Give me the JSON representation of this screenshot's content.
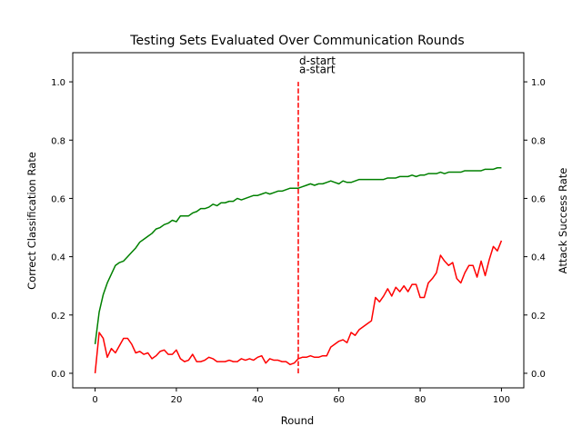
{
  "chart_data": {
    "type": "line",
    "title": "Testing Sets Evaluated Over Communication Rounds",
    "xlabel": "Round",
    "ylabel_left": "Correct Classification Rate",
    "ylabel_right": "Attack Success Rate",
    "xlim": [
      -5.5,
      105.5
    ],
    "ylim_left": [
      -0.05,
      1.1
    ],
    "ylim_right": [
      -0.05,
      1.1
    ],
    "x_ticks": [
      0,
      20,
      40,
      60,
      80,
      100
    ],
    "x_tick_labels": [
      "0",
      "20",
      "40",
      "60",
      "80",
      "100"
    ],
    "y_ticks": [
      0.0,
      0.2,
      0.4,
      0.6,
      0.8,
      1.0
    ],
    "y_tick_labels": [
      "0.0",
      "0.2",
      "0.4",
      "0.6",
      "0.8",
      "1.0"
    ],
    "grid": false,
    "legend": null,
    "colors": {
      "left_label": "#008000",
      "right_label": "#ff0000"
    },
    "series": [
      {
        "axis": "left",
        "color": "#008000",
        "x": [
          0,
          1,
          2,
          3,
          4,
          5,
          6,
          7,
          8,
          9,
          10,
          11,
          12,
          13,
          14,
          15,
          16,
          17,
          18,
          19,
          20,
          21,
          22,
          23,
          24,
          25,
          26,
          27,
          28,
          29,
          30,
          31,
          32,
          33,
          34,
          35,
          36,
          37,
          38,
          39,
          40,
          41,
          42,
          43,
          44,
          45,
          46,
          47,
          48,
          49,
          50,
          51,
          52,
          53,
          54,
          55,
          56,
          57,
          58,
          59,
          60,
          61,
          62,
          63,
          64,
          65,
          66,
          67,
          68,
          69,
          70,
          71,
          72,
          73,
          74,
          75,
          76,
          77,
          78,
          79,
          80,
          81,
          82,
          83,
          84,
          85,
          86,
          87,
          88,
          89,
          90,
          91,
          92,
          93,
          94,
          95,
          96,
          97,
          98,
          99,
          100
        ],
        "y": [
          0.1,
          0.21,
          0.27,
          0.31,
          0.34,
          0.37,
          0.38,
          0.385,
          0.4,
          0.415,
          0.43,
          0.45,
          0.46,
          0.47,
          0.48,
          0.495,
          0.5,
          0.51,
          0.515,
          0.525,
          0.52,
          0.54,
          0.54,
          0.54,
          0.55,
          0.555,
          0.565,
          0.565,
          0.57,
          0.58,
          0.575,
          0.585,
          0.585,
          0.59,
          0.59,
          0.6,
          0.595,
          0.6,
          0.605,
          0.61,
          0.61,
          0.615,
          0.62,
          0.615,
          0.62,
          0.625,
          0.625,
          0.63,
          0.635,
          0.635,
          0.635,
          0.64,
          0.645,
          0.65,
          0.645,
          0.65,
          0.65,
          0.655,
          0.66,
          0.655,
          0.65,
          0.66,
          0.655,
          0.655,
          0.66,
          0.665,
          0.665,
          0.665,
          0.665,
          0.665,
          0.665,
          0.665,
          0.67,
          0.67,
          0.67,
          0.675,
          0.675,
          0.675,
          0.68,
          0.675,
          0.68,
          0.68,
          0.685,
          0.685,
          0.685,
          0.69,
          0.685,
          0.69,
          0.69,
          0.69,
          0.69,
          0.695,
          0.695,
          0.695,
          0.695,
          0.695,
          0.7,
          0.7,
          0.7,
          0.705,
          0.705
        ]
      },
      {
        "axis": "right",
        "color": "#ff0000",
        "x": [
          0,
          1,
          2,
          3,
          4,
          5,
          6,
          7,
          8,
          9,
          10,
          11,
          12,
          13,
          14,
          15,
          16,
          17,
          18,
          19,
          20,
          21,
          22,
          23,
          24,
          25,
          26,
          27,
          28,
          29,
          30,
          31,
          32,
          33,
          34,
          35,
          36,
          37,
          38,
          39,
          40,
          41,
          42,
          43,
          44,
          45,
          46,
          47,
          48,
          49,
          50,
          51,
          52,
          53,
          54,
          55,
          56,
          57,
          58,
          59,
          60,
          61,
          62,
          63,
          64,
          65,
          66,
          67,
          68,
          69,
          70,
          71,
          72,
          73,
          74,
          75,
          76,
          77,
          78,
          79,
          80,
          81,
          82,
          83,
          84,
          85,
          86,
          87,
          88,
          89,
          90,
          91,
          92,
          93,
          94,
          95,
          96,
          97,
          98,
          99,
          100
        ],
        "y": [
          0.0,
          0.14,
          0.12,
          0.055,
          0.085,
          0.07,
          0.095,
          0.12,
          0.12,
          0.1,
          0.07,
          0.075,
          0.065,
          0.07,
          0.05,
          0.06,
          0.075,
          0.08,
          0.065,
          0.065,
          0.08,
          0.05,
          0.04,
          0.045,
          0.065,
          0.04,
          0.04,
          0.045,
          0.055,
          0.05,
          0.04,
          0.04,
          0.04,
          0.045,
          0.04,
          0.04,
          0.05,
          0.045,
          0.05,
          0.045,
          0.055,
          0.06,
          0.035,
          0.05,
          0.045,
          0.045,
          0.04,
          0.04,
          0.03,
          0.035,
          0.05,
          0.055,
          0.055,
          0.06,
          0.055,
          0.055,
          0.06,
          0.06,
          0.09,
          0.1,
          0.11,
          0.115,
          0.105,
          0.14,
          0.13,
          0.15,
          0.16,
          0.17,
          0.18,
          0.26,
          0.245,
          0.265,
          0.29,
          0.265,
          0.295,
          0.28,
          0.3,
          0.28,
          0.305,
          0.305,
          0.26,
          0.26,
          0.31,
          0.325,
          0.345,
          0.405,
          0.385,
          0.37,
          0.38,
          0.325,
          0.31,
          0.345,
          0.37,
          0.37,
          0.33,
          0.385,
          0.335,
          0.39,
          0.435,
          0.42,
          0.455
        ]
      },
      {
        "axis": "left",
        "color": "#ff0000",
        "style": "dashed",
        "x": [
          50,
          50
        ],
        "y": [
          0.0,
          1.0
        ]
      }
    ],
    "annotations": [
      {
        "text": "d-start",
        "x": 50,
        "y": 1.06
      },
      {
        "text": "a-start",
        "x": 50,
        "y": 1.03
      }
    ]
  }
}
